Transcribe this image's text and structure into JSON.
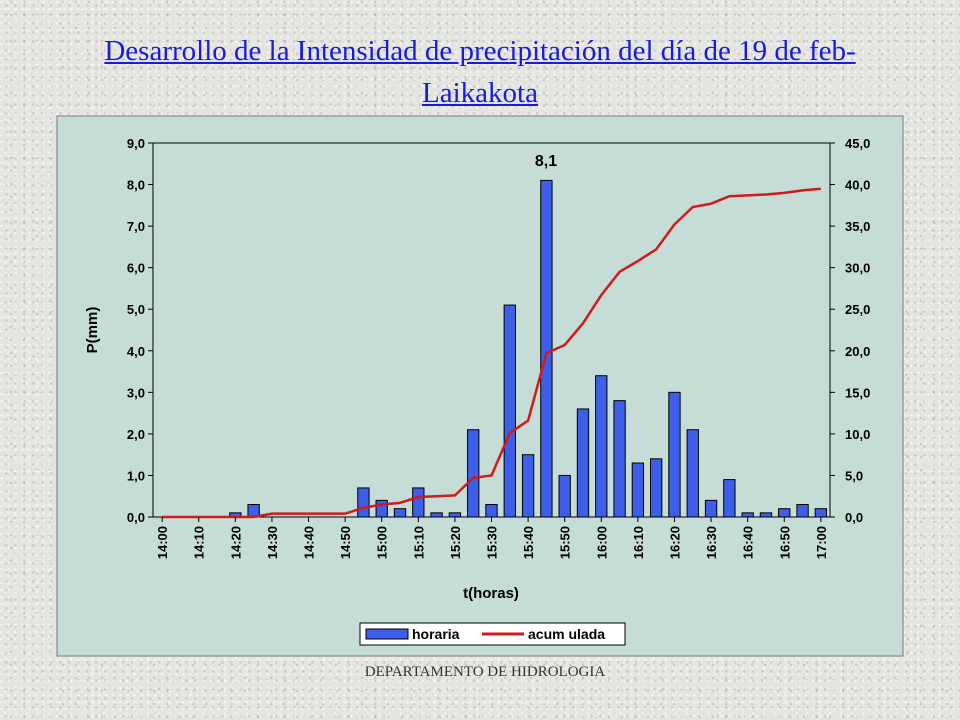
{
  "slide": {
    "title": "Desarrollo de la Intensidad de precipitación del día de 19 de feb- Laikakota",
    "footer": "DEPARTAMENTO DE HIDROLOGIA"
  },
  "colors": {
    "bar_fill": "#3d5fe8",
    "line": "#d11a1a",
    "plot_bg": "#c6ddd7",
    "title": "#1a1adf"
  },
  "chart_data": {
    "type": "bar",
    "title": "",
    "xlabel": "t(horas)",
    "ylabel": "P(mm)",
    "ylim": [
      0,
      9
    ],
    "y2lim": [
      0,
      45
    ],
    "yticks": [
      "0,0",
      "1,0",
      "2,0",
      "3,0",
      "4,0",
      "5,0",
      "6,0",
      "7,0",
      "8,0",
      "9,0"
    ],
    "y2ticks": [
      "0,0",
      "5,0",
      "10,0",
      "15,0",
      "20,0",
      "25,0",
      "30,0",
      "35,0",
      "40,0",
      "45,0"
    ],
    "categories": [
      "14:00",
      "14:05",
      "14:10",
      "14:15",
      "14:20",
      "14:25",
      "14:30",
      "14:35",
      "14:40",
      "14:45",
      "14:50",
      "14:55",
      "15:00",
      "15:05",
      "15:10",
      "15:15",
      "15:20",
      "15:25",
      "15:30",
      "15:35",
      "15:40",
      "15:45",
      "15:50",
      "15:55",
      "16:00",
      "16:05",
      "16:10",
      "16:15",
      "16:20",
      "16:25",
      "16:30",
      "16:35",
      "16:40",
      "16:45",
      "16:50",
      "16:55",
      "17:00"
    ],
    "tick_labels": [
      "14:00",
      "14:10",
      "14:20",
      "14:30",
      "14:40",
      "14:50",
      "15:00",
      "15:10",
      "15:20",
      "15:30",
      "15:40",
      "15:50",
      "16:00",
      "16:10",
      "16:20",
      "16:30",
      "16:40",
      "16:50",
      "17:00"
    ],
    "grid": false,
    "legend_position": "bottom",
    "annotation": "8,1",
    "series": [
      {
        "name": "horaria",
        "type": "bar",
        "axis": "left",
        "values": [
          0,
          0,
          0,
          0,
          0.1,
          0.3,
          0,
          0,
          0,
          0,
          0,
          0.7,
          0.4,
          0.2,
          0.7,
          0.1,
          0.1,
          2.1,
          0.3,
          5.1,
          1.5,
          8.1,
          1.0,
          2.6,
          3.4,
          2.8,
          1.3,
          1.4,
          3.0,
          2.1,
          0.4,
          0.9,
          0.1,
          0.1,
          0.2,
          0.3,
          0.2
        ]
      },
      {
        "name": "acum ulada",
        "type": "line",
        "axis": "right",
        "values": [
          0,
          0,
          0,
          0,
          0,
          0,
          0.4,
          0.4,
          0.4,
          0.4,
          0.4,
          1.1,
          1.5,
          1.7,
          2.4,
          2.5,
          2.6,
          4.7,
          5.0,
          10.1,
          11.6,
          19.7,
          20.7,
          23.3,
          26.7,
          29.5,
          30.8,
          32.2,
          35.2,
          37.3,
          37.7,
          38.6,
          38.7,
          38.8,
          39.0,
          39.3,
          39.5
        ]
      }
    ]
  }
}
